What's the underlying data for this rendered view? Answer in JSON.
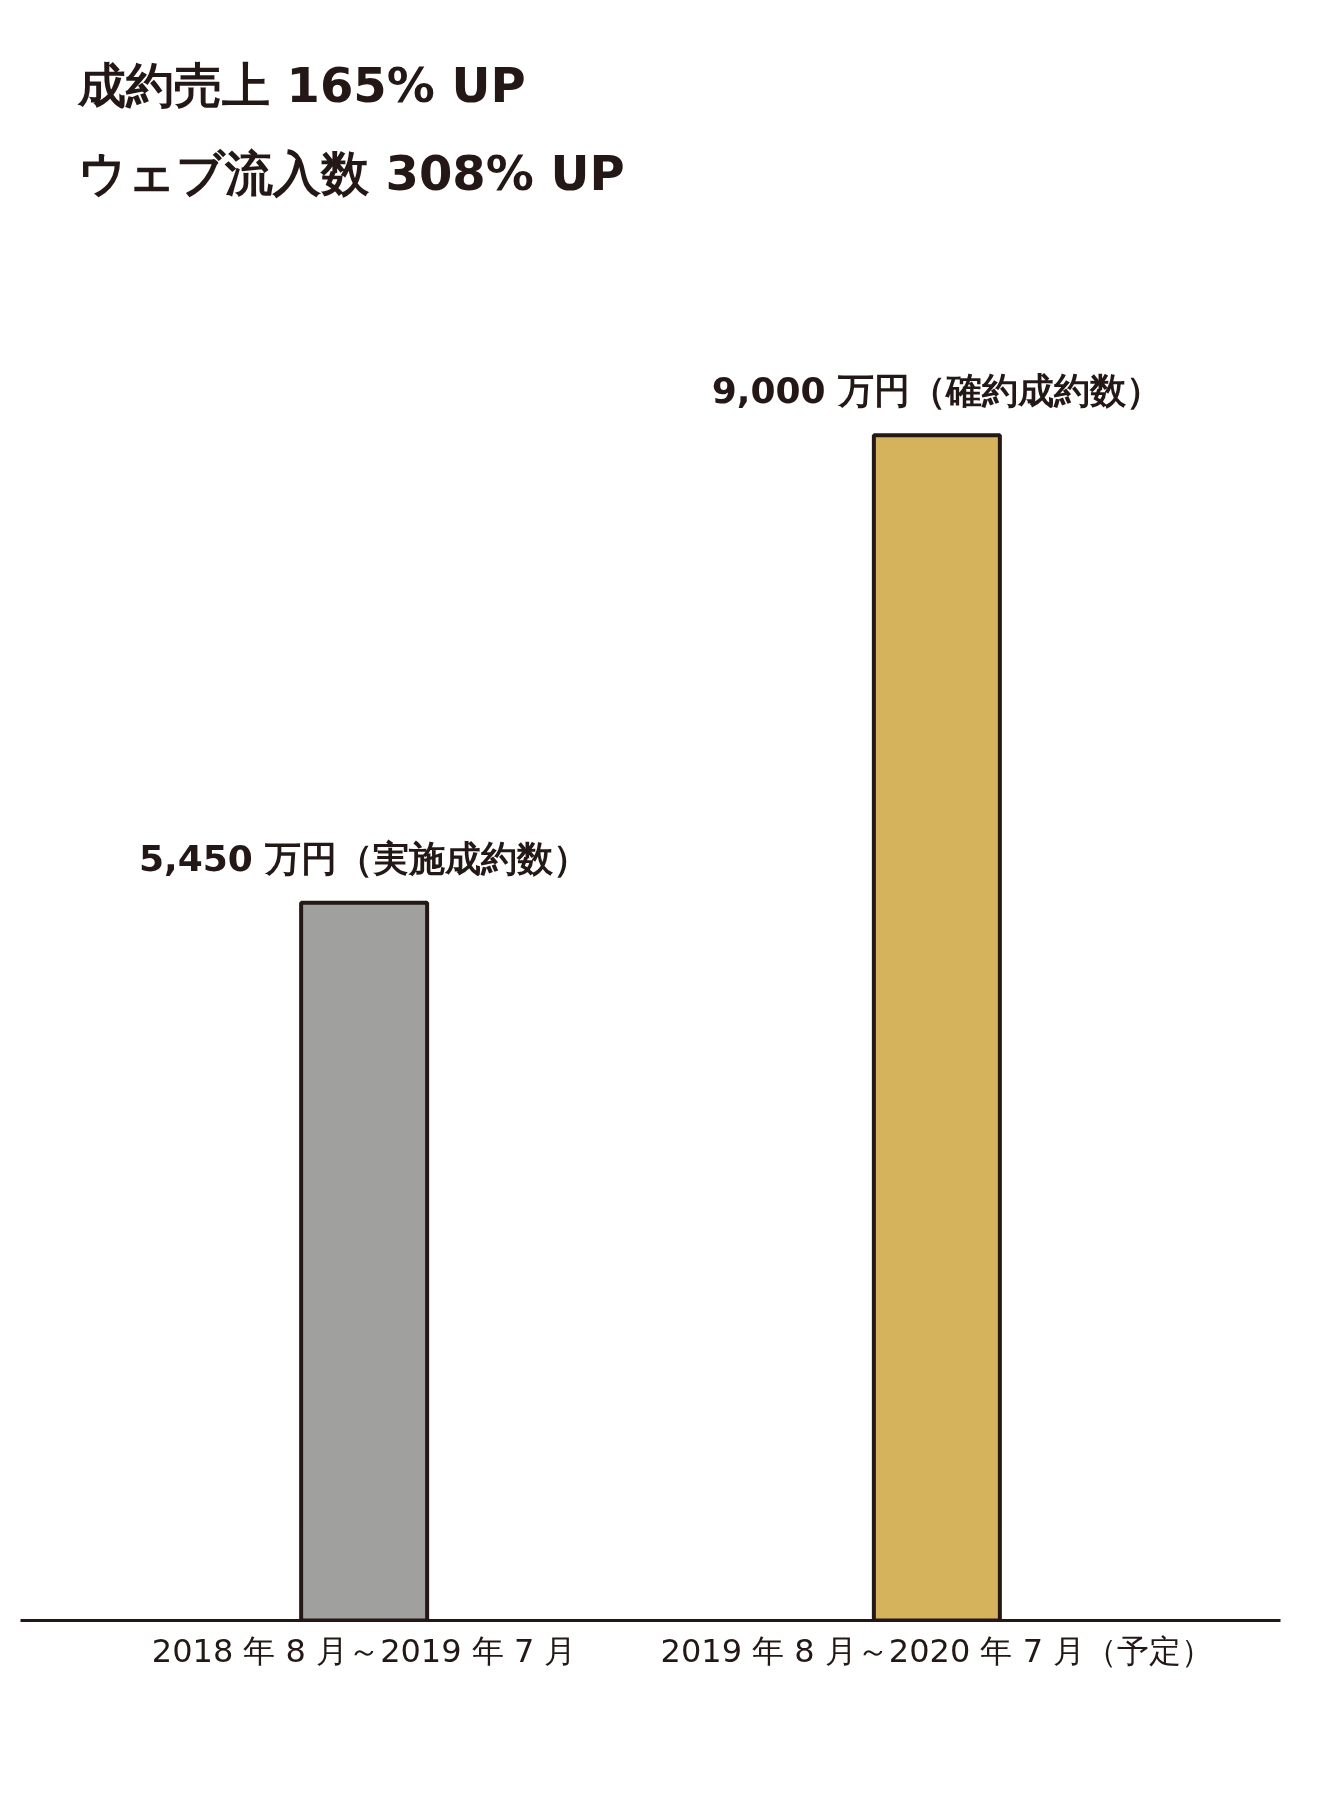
{
  "chart_data": {
    "type": "bar",
    "categories": [
      "2018 年 8 月～2019 年 7 月",
      "2019 年 8 月～2020 年 7 月（予定）"
    ],
    "values": [
      5450,
      9000
    ],
    "colors": [
      "#a0a09f",
      "#d4b35c"
    ],
    "value_labels": [
      "5,450 万円（実施成約数）",
      "9,000 万円（確約成約数）"
    ],
    "annotations": [
      "成約売上 165% UP",
      "ウェブ流入数 308% UP"
    ],
    "tick_labels": "x",
    "grid": false
  }
}
